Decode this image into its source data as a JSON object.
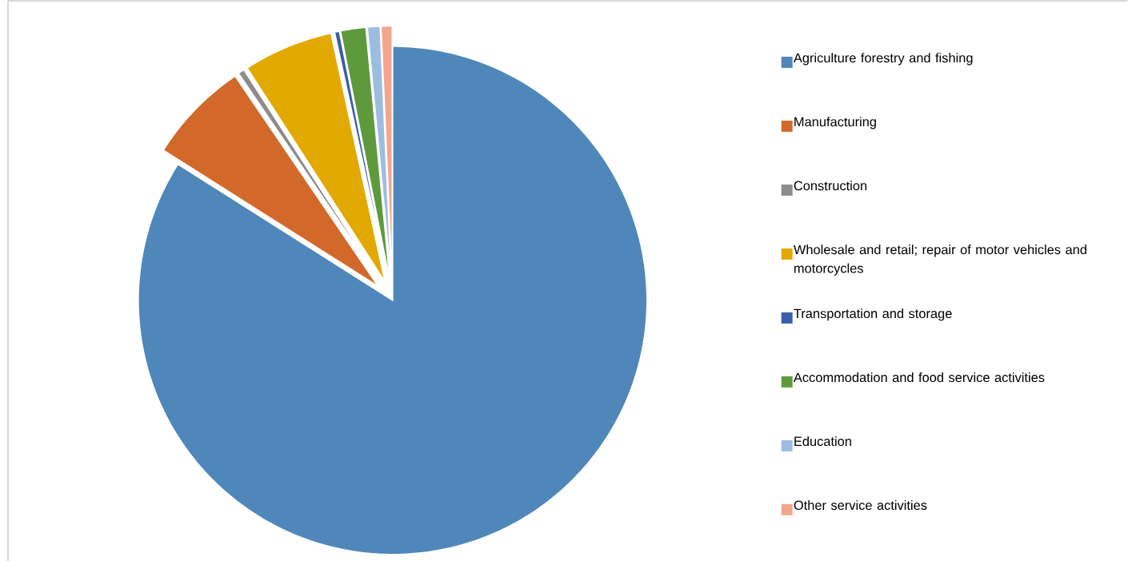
{
  "chart_data": {
    "type": "pie",
    "categories": [
      "Agriculture forestry and fishing",
      "Manufacturing",
      "Construction",
      "Wholesale and retail; repair of motor vehicles and motorcycles",
      "Transportation and storage",
      "Accommodation and food service activities",
      "Education",
      "Other service activities"
    ],
    "values": [
      84.0,
      6.5,
      0.4,
      5.7,
      0.3,
      1.6,
      0.8,
      0.7
    ],
    "colors": [
      "#4f87ba",
      "#d2692a",
      "#8c8c8c",
      "#e2a900",
      "#3a5ea8",
      "#5e9a3c",
      "#9dbde0",
      "#f2a68e"
    ],
    "legend": "right"
  }
}
